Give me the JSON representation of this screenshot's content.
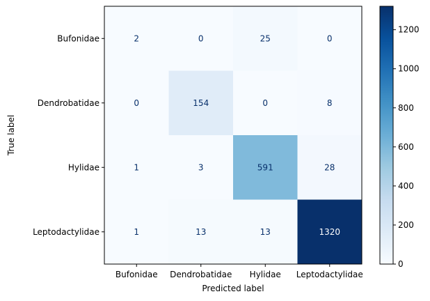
{
  "chart_data": {
    "type": "heatmap",
    "xlabel": "Predicted label",
    "ylabel": "True label",
    "x_categories": [
      "Bufonidae",
      "Dendrobatidae",
      "Hylidae",
      "Leptodactylidae"
    ],
    "y_categories": [
      "Bufonidae",
      "Dendrobatidae",
      "Hylidae",
      "Leptodactylidae"
    ],
    "values": [
      [
        2,
        0,
        25,
        0
      ],
      [
        0,
        154,
        0,
        8
      ],
      [
        1,
        3,
        591,
        28
      ],
      [
        1,
        13,
        13,
        1320
      ]
    ],
    "colormap": "Blues",
    "colorbar": {
      "min": 0,
      "max": 1320,
      "ticks": [
        0,
        200,
        400,
        600,
        800,
        1000,
        1200
      ],
      "tick_labels": [
        "0",
        "200",
        "400",
        "600",
        "800",
        "1000",
        "1200"
      ]
    },
    "text_colors": {
      "dark": "#08306b",
      "light": "#ffffff"
    },
    "grid": false
  }
}
